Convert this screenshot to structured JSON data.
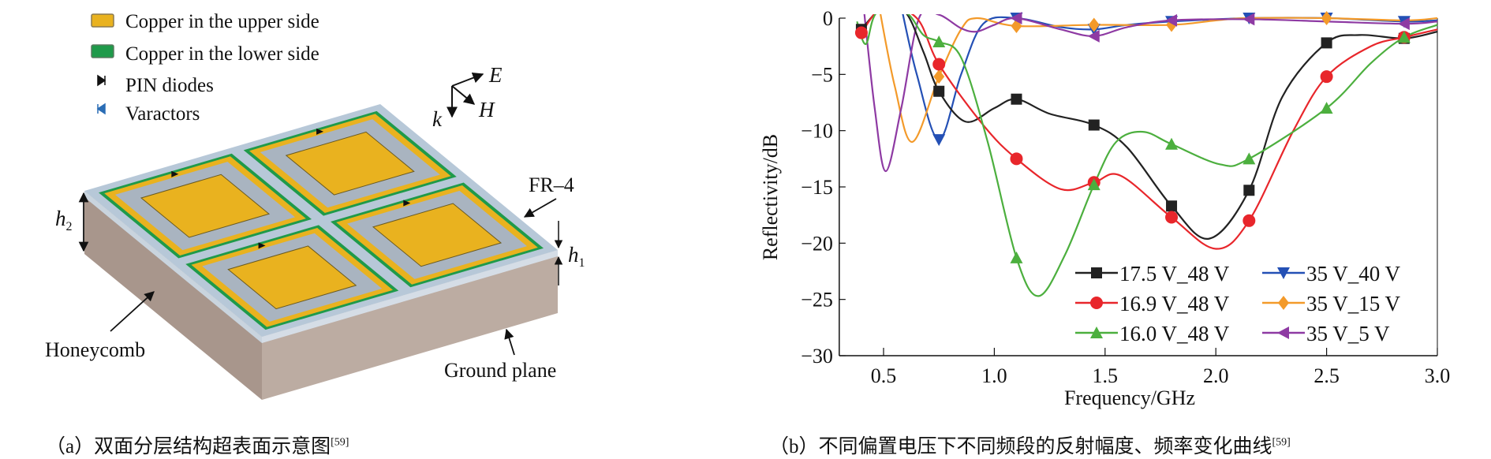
{
  "panel_a": {
    "legend": [
      {
        "label": "Copper in the upper side",
        "icon": "yellow-swatch",
        "color": "#e9b21f"
      },
      {
        "label": "Copper in the lower side",
        "icon": "green-swatch",
        "color": "#1f9a4a"
      },
      {
        "label": "PIN diodes",
        "icon": "pin-diode-icon",
        "color": "#111111"
      },
      {
        "label": "Varactors",
        "icon": "varactor-icon",
        "color": "#2a6db5"
      }
    ],
    "axes": {
      "e": "E",
      "h": "H",
      "k": "k"
    },
    "labels": {
      "fr4": "FR–4",
      "h2": "h",
      "h2_sub": "2",
      "h1": "h",
      "h1_sub": "1",
      "honeycomb": "Honeycomb",
      "ground": "Ground plane"
    },
    "caption": "（a）双面分层结构超表面示意图",
    "caption_ref": "[59]"
  },
  "panel_b": {
    "caption": "（b）不同偏置电压下不同频段的反射幅度、频率变化曲线",
    "caption_ref": "[59]"
  },
  "chart_data": {
    "type": "line",
    "xlabel": "Frequency/GHz",
    "ylabel": "Reflectivity/dB",
    "xlim": [
      0.3,
      3.0
    ],
    "ylim": [
      -30,
      0
    ],
    "xticks": [
      "0.5",
      "1.0",
      "1.5",
      "2.0",
      "2.5",
      "3.0"
    ],
    "xtick_values": [
      0.5,
      1.0,
      1.5,
      2.0,
      2.5,
      3.0
    ],
    "yticks": [
      "0",
      "−5",
      "−10",
      "−15",
      "−20",
      "−25",
      "−30"
    ],
    "ytick_values": [
      0,
      -5,
      -10,
      -15,
      -20,
      -25,
      -30
    ],
    "grid": false,
    "legend_position": "bottom-right",
    "series": [
      {
        "name": "17.5 V_48 V",
        "color": "#222222",
        "marker": "square",
        "points": [
          [
            0.4,
            -1
          ],
          [
            0.5,
            1
          ],
          [
            0.6,
            0.5
          ],
          [
            0.68,
            -3
          ],
          [
            0.75,
            -6.5
          ],
          [
            0.87,
            -9.2
          ],
          [
            1.0,
            -8
          ],
          [
            1.1,
            -7.2
          ],
          [
            1.25,
            -8.5
          ],
          [
            1.45,
            -9.5
          ],
          [
            1.6,
            -11.5
          ],
          [
            1.8,
            -16.7
          ],
          [
            1.97,
            -19.6
          ],
          [
            2.15,
            -15.3
          ],
          [
            2.3,
            -7
          ],
          [
            2.5,
            -2.2
          ],
          [
            2.65,
            -1.5
          ],
          [
            2.85,
            -1.8
          ],
          [
            3.0,
            -1.2
          ]
        ],
        "markers": [
          [
            0.4,
            -1
          ],
          [
            0.75,
            -6.5
          ],
          [
            1.1,
            -7.2
          ],
          [
            1.45,
            -9.5
          ],
          [
            1.8,
            -16.7
          ],
          [
            2.15,
            -15.3
          ],
          [
            2.5,
            -2.2
          ],
          [
            2.85,
            -1.8
          ]
        ]
      },
      {
        "name": "16.9 V_48 V",
        "color": "#e8262b",
        "marker": "circle",
        "points": [
          [
            0.4,
            -1.3
          ],
          [
            0.5,
            1
          ],
          [
            0.65,
            0
          ],
          [
            0.75,
            -4.1
          ],
          [
            0.95,
            -9.5
          ],
          [
            1.1,
            -12.5
          ],
          [
            1.3,
            -15.2
          ],
          [
            1.45,
            -14.6
          ],
          [
            1.57,
            -14
          ],
          [
            1.8,
            -17.7
          ],
          [
            2.0,
            -20.5
          ],
          [
            2.15,
            -18
          ],
          [
            2.35,
            -10
          ],
          [
            2.5,
            -5.2
          ],
          [
            2.7,
            -2.5
          ],
          [
            2.85,
            -1.7
          ],
          [
            3.0,
            -1.0
          ]
        ],
        "markers": [
          [
            0.4,
            -1.3
          ],
          [
            0.75,
            -4.1
          ],
          [
            1.1,
            -12.5
          ],
          [
            1.45,
            -14.6
          ],
          [
            1.8,
            -17.7
          ],
          [
            2.15,
            -18
          ],
          [
            2.5,
            -5.2
          ],
          [
            2.85,
            -1.7
          ]
        ]
      },
      {
        "name": "16.0 V_48 V",
        "color": "#4caf3e",
        "marker": "triangle-up",
        "points": [
          [
            0.38,
            -0.3
          ],
          [
            0.42,
            -2.3
          ],
          [
            0.47,
            0.5
          ],
          [
            0.6,
            0.5
          ],
          [
            0.68,
            -1.5
          ],
          [
            0.75,
            -2.1
          ],
          [
            0.85,
            -3.5
          ],
          [
            0.97,
            -11
          ],
          [
            1.1,
            -21.3
          ],
          [
            1.2,
            -24.7
          ],
          [
            1.32,
            -21
          ],
          [
            1.45,
            -14.8
          ],
          [
            1.55,
            -11
          ],
          [
            1.67,
            -10.1
          ],
          [
            1.8,
            -11.2
          ],
          [
            2.02,
            -13
          ],
          [
            2.15,
            -12.5
          ],
          [
            2.5,
            -8
          ],
          [
            2.7,
            -4
          ],
          [
            2.85,
            -1.7
          ],
          [
            3.0,
            -0.6
          ]
        ],
        "markers": [
          [
            0.75,
            -2.1
          ],
          [
            1.1,
            -21.3
          ],
          [
            1.45,
            -14.8
          ],
          [
            1.8,
            -11.2
          ],
          [
            2.15,
            -12.5
          ],
          [
            2.5,
            -8
          ],
          [
            2.85,
            -1.7
          ]
        ]
      },
      {
        "name": "35 V_40 V",
        "color": "#2450b5",
        "marker": "triangle-down",
        "points": [
          [
            0.58,
            1
          ],
          [
            0.65,
            -5
          ],
          [
            0.75,
            -10.8
          ],
          [
            0.85,
            -5
          ],
          [
            0.95,
            -0.5
          ],
          [
            1.1,
            0
          ],
          [
            1.3,
            -0.8
          ],
          [
            1.45,
            -1
          ],
          [
            1.6,
            -0.6
          ],
          [
            1.8,
            -0.3
          ],
          [
            2.15,
            0
          ],
          [
            2.5,
            0
          ],
          [
            2.85,
            -0.3
          ],
          [
            3.0,
            -0.2
          ]
        ],
        "markers": [
          [
            0.75,
            -10.8
          ],
          [
            1.1,
            0
          ],
          [
            1.45,
            -1
          ],
          [
            1.8,
            -0.3
          ],
          [
            2.15,
            0
          ],
          [
            2.5,
            0
          ],
          [
            2.85,
            -0.3
          ]
        ]
      },
      {
        "name": "35 V_15 V",
        "color": "#f39a2a",
        "marker": "diamond",
        "points": [
          [
            0.48,
            1
          ],
          [
            0.55,
            -6
          ],
          [
            0.63,
            -11
          ],
          [
            0.75,
            -5.2
          ],
          [
            0.85,
            -1
          ],
          [
            0.92,
            0
          ],
          [
            1.1,
            -0.7
          ],
          [
            1.45,
            -0.6
          ],
          [
            1.8,
            -0.6
          ],
          [
            2.0,
            -0.2
          ],
          [
            2.15,
            0
          ],
          [
            2.5,
            0
          ],
          [
            2.85,
            -0.2
          ],
          [
            3.0,
            0
          ]
        ],
        "markers": [
          [
            0.75,
            -5.2
          ],
          [
            1.1,
            -0.7
          ],
          [
            1.45,
            -0.6
          ],
          [
            1.8,
            -0.6
          ],
          [
            2.5,
            0
          ]
        ]
      },
      {
        "name": "35 V_5 V",
        "color": "#8e3aa3",
        "marker": "triangle-left",
        "points": [
          [
            0.41,
            1
          ],
          [
            0.46,
            -8
          ],
          [
            0.51,
            -13.6
          ],
          [
            0.58,
            -8
          ],
          [
            0.66,
            0
          ],
          [
            0.75,
            0.3
          ],
          [
            0.85,
            -0.9
          ],
          [
            0.92,
            -1.2
          ],
          [
            1.0,
            -0.6
          ],
          [
            1.1,
            0
          ],
          [
            1.3,
            -1
          ],
          [
            1.45,
            -1.6
          ],
          [
            1.6,
            -0.8
          ],
          [
            1.8,
            -0.2
          ],
          [
            2.15,
            -0.1
          ],
          [
            2.5,
            -0.3
          ],
          [
            2.85,
            -0.5
          ],
          [
            3.0,
            -0.3
          ]
        ],
        "markers": [
          [
            1.1,
            0
          ],
          [
            1.45,
            -1.6
          ],
          [
            1.8,
            -0.2
          ],
          [
            2.15,
            -0.1
          ],
          [
            2.85,
            -0.5
          ]
        ]
      }
    ]
  }
}
